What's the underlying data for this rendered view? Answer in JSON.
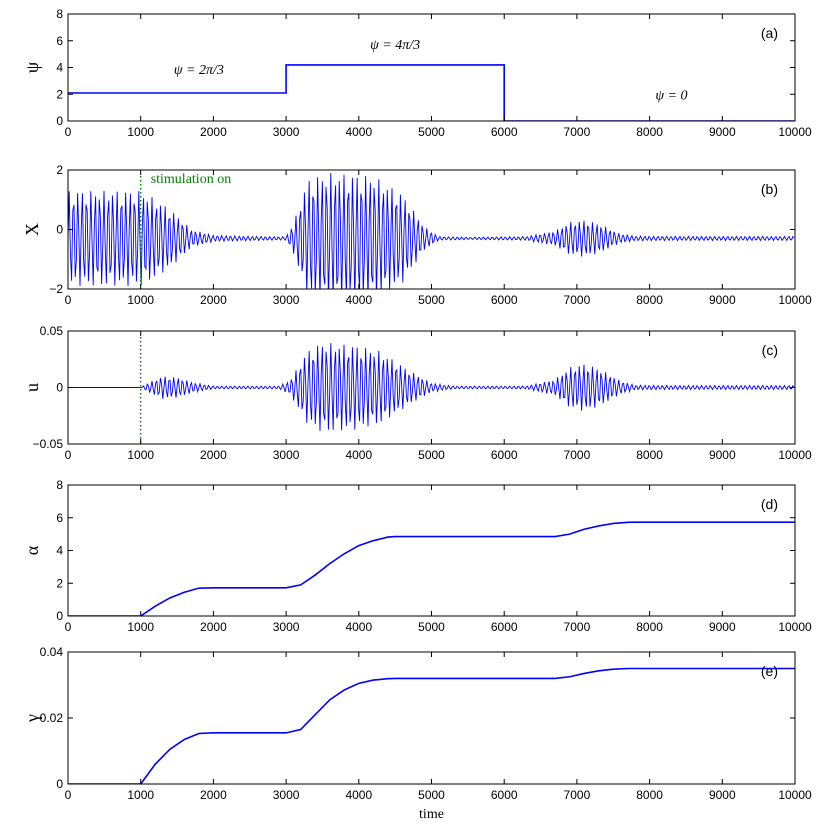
{
  "chart_data": [
    {
      "id": "a",
      "panel_label": "(a)",
      "type": "line",
      "ylabel": "ψ",
      "xlim": [
        0,
        10000
      ],
      "ylim": [
        0,
        8
      ],
      "yticks": [
        "0",
        "2",
        "4",
        "6",
        "8"
      ],
      "ytick_values": [
        0,
        2,
        4,
        6,
        8
      ],
      "xticks": [
        "0",
        "1000",
        "2000",
        "3000",
        "4000",
        "5000",
        "6000",
        "7000",
        "8000",
        "9000",
        "10000"
      ],
      "series": [
        {
          "color": "#0000ff",
          "x": [
            0,
            3000,
            3000,
            6000,
            6000,
            10000
          ],
          "y": [
            2.094,
            2.094,
            4.189,
            4.189,
            0,
            0
          ]
        }
      ],
      "annotations": [
        {
          "text": "ψ = 2π/3",
          "x": 1800,
          "y": 3.5
        },
        {
          "text": "ψ = 4π/3",
          "x": 4500,
          "y": 5.4
        },
        {
          "text": "ψ = 0",
          "x": 8300,
          "y": 1.6
        }
      ]
    },
    {
      "id": "b",
      "panel_label": "(b)",
      "type": "line",
      "ylabel": "X",
      "xlim": [
        0,
        10000
      ],
      "ylim": [
        -2,
        2
      ],
      "yticks": [
        "−2",
        "0",
        "2"
      ],
      "ytick_values": [
        -2,
        0,
        2
      ],
      "xticks": [
        "0",
        "1000",
        "2000",
        "3000",
        "4000",
        "5000",
        "6000",
        "7000",
        "8000",
        "9000",
        "10000"
      ],
      "stimulation_x": 1000,
      "stimulation_label": "stimulation on",
      "series": [
        {
          "color": "#0000ff",
          "center": -0.3,
          "period": 60,
          "envelope_x": [
            0,
            100,
            1000,
            1150,
            1400,
            1700,
            2000,
            2800,
            3000,
            3100,
            3300,
            3600,
            4200,
            4600,
            4900,
            5100,
            5500,
            6300,
            6700,
            6900,
            7100,
            7300,
            7600,
            7800,
            8500,
            10000
          ],
          "envelope_y": [
            1.6,
            1.6,
            1.6,
            1.4,
            1.0,
            0.3,
            0.1,
            0.06,
            0.06,
            0.5,
            2.0,
            2.2,
            2.1,
            1.5,
            0.4,
            0.06,
            0.04,
            0.06,
            0.25,
            0.55,
            0.62,
            0.5,
            0.15,
            0.08,
            0.07,
            0.07
          ]
        }
      ]
    },
    {
      "id": "c",
      "panel_label": "(c)",
      "type": "line",
      "ylabel": "u",
      "xlim": [
        0,
        10000
      ],
      "ylim": [
        -0.05,
        0.05
      ],
      "yticks": [
        "−0.05",
        "0",
        "0.05"
      ],
      "ytick_values": [
        -0.05,
        0,
        0.05
      ],
      "xticks": [
        "0",
        "1000",
        "2000",
        "3000",
        "4000",
        "5000",
        "6000",
        "7000",
        "8000",
        "9000",
        "10000"
      ],
      "stimulation_x": 1000,
      "series": [
        {
          "color": "#0000ff",
          "center": 0,
          "period": 60,
          "envelope_x": [
            0,
            1000,
            1100,
            1300,
            1500,
            1750,
            2000,
            2900,
            3050,
            3300,
            3500,
            4000,
            4300,
            4700,
            5000,
            5300,
            6300,
            6700,
            6900,
            7100,
            7300,
            7600,
            7800,
            8500,
            10000
          ],
          "envelope_y": [
            0,
            0,
            0.004,
            0.01,
            0.009,
            0.004,
            0.0012,
            0.0012,
            0.006,
            0.033,
            0.04,
            0.037,
            0.032,
            0.015,
            0.004,
            0.0012,
            0.0012,
            0.007,
            0.018,
            0.021,
            0.017,
            0.006,
            0.002,
            0.0018,
            0.0018
          ]
        }
      ]
    },
    {
      "id": "d",
      "panel_label": "(d)",
      "type": "line",
      "ylabel": "α",
      "xlim": [
        0,
        10000
      ],
      "ylim": [
        0,
        8
      ],
      "yticks": [
        "0",
        "2",
        "4",
        "6",
        "8"
      ],
      "ytick_values": [
        0,
        2,
        4,
        6,
        8
      ],
      "xticks": [
        "0",
        "1000",
        "2000",
        "3000",
        "4000",
        "5000",
        "6000",
        "7000",
        "8000",
        "9000",
        "10000"
      ],
      "series": [
        {
          "color": "#0000ff",
          "x": [
            0,
            1000,
            1200,
            1400,
            1600,
            1800,
            2000,
            3000,
            3200,
            3400,
            3600,
            3800,
            4000,
            4200,
            4400,
            4500,
            6700,
            6900,
            7100,
            7300,
            7500,
            7700,
            7750,
            10000
          ],
          "y": [
            0,
            0,
            0.6,
            1.1,
            1.45,
            1.7,
            1.72,
            1.72,
            1.9,
            2.5,
            3.2,
            3.8,
            4.3,
            4.6,
            4.82,
            4.85,
            4.85,
            5.0,
            5.3,
            5.5,
            5.65,
            5.72,
            5.73,
            5.73
          ]
        }
      ]
    },
    {
      "id": "e",
      "panel_label": "(e)",
      "type": "line",
      "ylabel": "γ",
      "xlim": [
        0,
        10000
      ],
      "ylim": [
        0,
        0.04
      ],
      "yticks": [
        "0",
        "0.02",
        "0.04"
      ],
      "ytick_values": [
        0,
        0.02,
        0.04
      ],
      "xticks": [
        "0",
        "1000",
        "2000",
        "3000",
        "4000",
        "5000",
        "6000",
        "7000",
        "8000",
        "9000",
        "10000"
      ],
      "xlabel": "time",
      "series": [
        {
          "color": "#0000ff",
          "x": [
            0,
            1000,
            1200,
            1400,
            1600,
            1800,
            2000,
            3000,
            3200,
            3400,
            3600,
            3800,
            4000,
            4200,
            4400,
            4500,
            6700,
            6900,
            7100,
            7300,
            7500,
            7700,
            7750,
            10000
          ],
          "y": [
            0,
            0,
            0.006,
            0.0105,
            0.0135,
            0.0153,
            0.0155,
            0.0155,
            0.0165,
            0.021,
            0.0255,
            0.0285,
            0.0305,
            0.0315,
            0.0319,
            0.032,
            0.032,
            0.0325,
            0.0335,
            0.0343,
            0.0348,
            0.035,
            0.035,
            0.035
          ]
        }
      ]
    }
  ]
}
